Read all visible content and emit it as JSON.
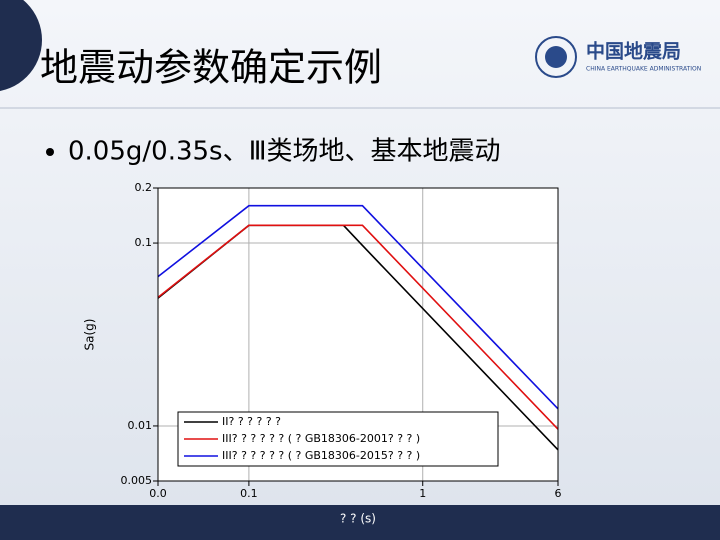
{
  "slide": {
    "title": "地震动参数确定示例",
    "bullet": "0.05g/0.35s、Ⅲ类场地、基本地震动"
  },
  "logo": {
    "name": "中国地震局",
    "english": "CHINA EARTHQUAKE ADMINISTRATION"
  },
  "chart_data": {
    "type": "line",
    "xlabel": "? ? (s)",
    "ylabel": "Sa(g)",
    "x": [
      0.03,
      0.1,
      0.35,
      0.45,
      6
    ],
    "series": [
      {
        "name": "II? ? ? ? ? ?",
        "color": "#000000",
        "values": [
          0.05,
          0.125,
          0.125,
          0.097,
          0.0074
        ]
      },
      {
        "name": "III? ? ? ? ? ? ( ? GB18306-2001? ? ? )",
        "color": "#e01010",
        "values": [
          0.0505,
          0.125,
          0.125,
          0.125,
          0.0096
        ]
      },
      {
        "name": "III? ? ? ? ? ? ( ? GB18306-2015? ? ? )",
        "color": "#1010e0",
        "values": [
          0.0655,
          0.16,
          0.16,
          0.16,
          0.0124
        ]
      }
    ],
    "xscale": "log",
    "yscale": "log",
    "xlim": [
      0.03,
      6
    ],
    "xticks": [
      {
        "value": 0.03,
        "label": "0.0"
      },
      0.1,
      1,
      6
    ],
    "ylim": [
      0.005,
      0.2
    ],
    "yticks": [
      0.005,
      0.01,
      0.1,
      0.2
    ],
    "grid": true,
    "legend": "lower left"
  }
}
